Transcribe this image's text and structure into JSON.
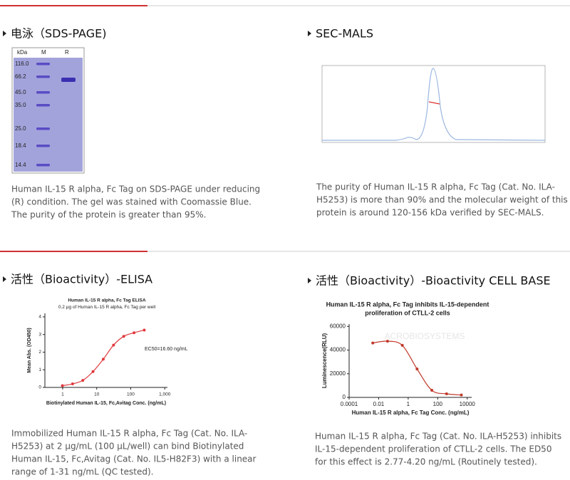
{
  "panels": [
    {
      "heading": "电泳（SDS-PAGE)",
      "gel": {
        "unit": "kDa",
        "lanes": [
          "M",
          "R"
        ],
        "markers": [
          "116.0",
          "66.2",
          "45.0",
          "35.0",
          "25.0",
          "18.4",
          "14.4"
        ]
      },
      "caption": [
        "Human IL-15 R alpha, Fc Tag on SDS-PAGE under reducing",
        "(R) condition. The gel was stained with Coomassie Blue.",
        "The purity of the protein is greater than 95%."
      ]
    },
    {
      "heading": "SEC-MALS",
      "caption": [
        "The purity of Human IL-15 R alpha, Fc Tag (Cat. No. ILA-",
        "H5253) is more than 90% and the molecular weight of this",
        "protein is around 120-156 kDa verified by SEC-MALS."
      ]
    },
    {
      "heading": "活性（Bioactivity）-ELISA",
      "caption": [
        "Immobilized Human IL-15 R alpha, Fc Tag (Cat. No. ILA-",
        "H5253) at 2 μg/mL (100 μL/well) can bind Biotinylated",
        "Human IL-15, Fc,Avitag (Cat. No. IL5-H82F3) with a linear",
        "range of 1-31 ng/mL (QC tested)."
      ]
    },
    {
      "heading": "活性（Bioactivity）-Bioactivity CELL BASE",
      "caption": [
        "Human IL-15 R alpha, Fc Tag (Cat. No. ILA-H5253) inhibits",
        "IL-15-dependent proliferation of CTLL-2 cells. The ED50",
        "for this effect is 2.77-4.20 ng/mL (Routinely tested)."
      ]
    }
  ],
  "chart_data": [
    {
      "type": "line",
      "title": [
        "Human IL-15 R alpha, Fc Tag ELISA",
        "0.2 μg of Human IL-15 R alpha, Fc Tag per well"
      ],
      "x_label": "Biotinylated Human IL-15, Fc,Avitag Conc. (ng/mL)",
      "y_label": "Mean Abs. (OD450)",
      "annotation": "EC50=16.60 ng/mL",
      "xscale": "log",
      "xlim": [
        0.3,
        1200
      ],
      "xticks": [
        1,
        10,
        100,
        {
          "value": 1000,
          "label": "1,000"
        }
      ],
      "ylim": [
        0,
        4.2
      ],
      "yticks": [
        0,
        1,
        2,
        3,
        4
      ],
      "x": [
        0.98,
        1.95,
        3.9,
        7.8,
        15.6,
        31.25,
        62.5,
        125,
        250
      ],
      "series": [
        {
          "name": null,
          "color": "#e0393e",
          "values": [
            0.1,
            0.2,
            0.4,
            0.9,
            1.6,
            2.4,
            2.9,
            3.1,
            3.25
          ]
        }
      ]
    },
    {
      "type": "line",
      "title": [
        "Human IL-15 R alpha, Fc Tag inhibits IL-15-dependent",
        "proliferation of CTLL-2 cells"
      ],
      "x_label": "Human IL-15 R alpha, Fc Tag Conc. (ng/mL)",
      "y_label": "Luminescence(RLU)",
      "watermark": "ACROBIOSYSTEMS",
      "xscale": "log",
      "xlim": [
        0.0001,
        20000
      ],
      "xticks": [
        0.0001,
        0.01,
        1,
        100,
        10000
      ],
      "ylim": [
        0,
        62000
      ],
      "yticks": [
        0,
        20000,
        40000,
        60000
      ],
      "x": [
        0.004,
        0.04,
        0.4,
        4,
        40,
        400,
        4000
      ],
      "series": [
        {
          "name": null,
          "color": "#c0392b",
          "values": [
            46000,
            47500,
            44000,
            24000,
            6000,
            3000,
            2000
          ]
        }
      ]
    }
  ]
}
